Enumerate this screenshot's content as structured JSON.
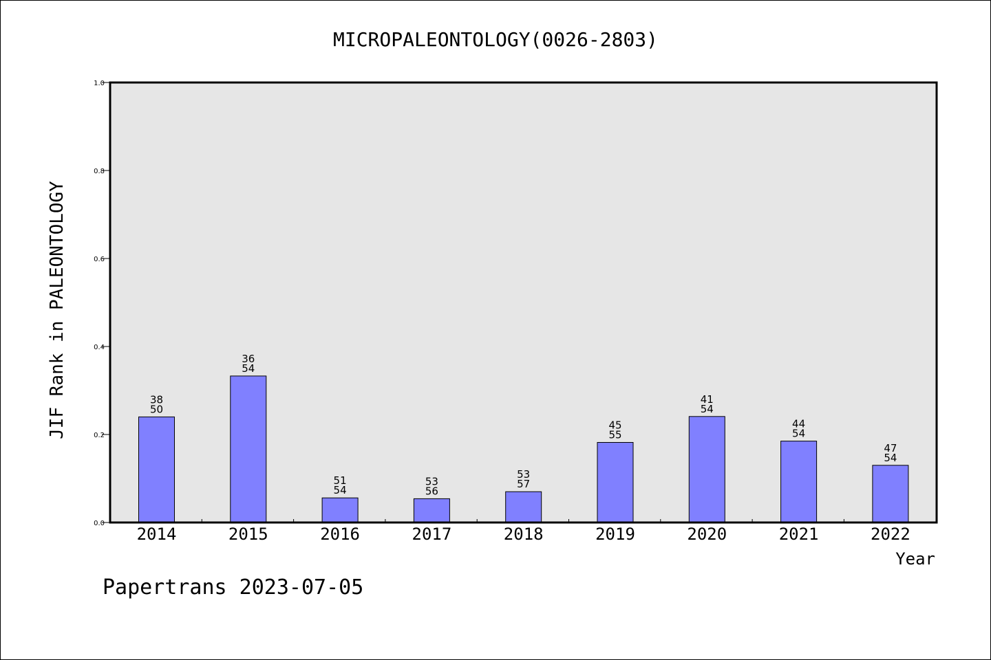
{
  "chart_data": {
    "type": "bar",
    "title": "MICROPALEONTOLOGY(0026-2803)",
    "xlabel": "Year",
    "ylabel": "JIF Rank in PALEONTOLOGY",
    "categories": [
      "2014",
      "2015",
      "2016",
      "2017",
      "2018",
      "2019",
      "2020",
      "2021",
      "2022"
    ],
    "values": [
      0.24,
      0.333,
      0.056,
      0.054,
      0.07,
      0.182,
      0.241,
      0.185,
      0.13
    ],
    "bar_labels": [
      {
        "top": "38",
        "bottom": "50"
      },
      {
        "top": "36",
        "bottom": "54"
      },
      {
        "top": "51",
        "bottom": "54"
      },
      {
        "top": "53",
        "bottom": "56"
      },
      {
        "top": "53",
        "bottom": "57"
      },
      {
        "top": "45",
        "bottom": "55"
      },
      {
        "top": "41",
        "bottom": "54"
      },
      {
        "top": "44",
        "bottom": "54"
      },
      {
        "top": "47",
        "bottom": "54"
      }
    ],
    "ylim": [
      0,
      1.0
    ],
    "yticks": [
      "0.0",
      "0.2",
      "0.4",
      "0.6",
      "0.8",
      "1.0"
    ],
    "grid": false,
    "colors": {
      "bar": "#8080ff",
      "plot_background": "#e6e6e6"
    }
  },
  "footer": "Papertrans 2023-07-05"
}
